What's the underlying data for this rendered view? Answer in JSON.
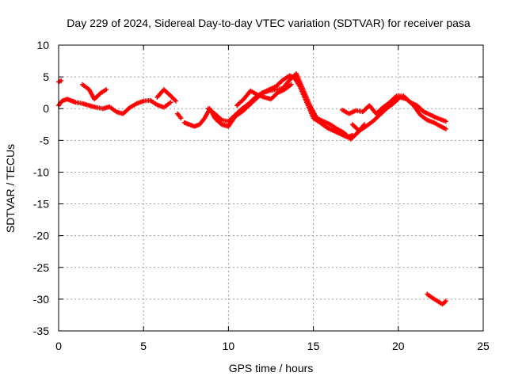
{
  "colors": {
    "series": "#ff0000",
    "grid": "#a0a0a0",
    "axis": "#000000"
  },
  "chart_data": {
    "type": "scatter",
    "title": "Day 229 of 2024, Sidereal Day-to-day VTEC variation (SDTVAR) for receiver pasa",
    "xlabel": "GPS time / hours",
    "ylabel": "SDTVAR / TECUs",
    "xlim": [
      0,
      25
    ],
    "ylim": [
      -35,
      10
    ],
    "xticks": [
      0,
      5,
      10,
      15,
      20,
      25
    ],
    "yticks": [
      10,
      5,
      0,
      -5,
      -10,
      -15,
      -20,
      -25,
      -30,
      -35
    ],
    "grid": true,
    "marker": "plus",
    "series": [
      {
        "name": "SDTVAR",
        "x": [
          0,
          0.2,
          0.5,
          0.8,
          1.0,
          1.4,
          1.8,
          2.2,
          2.6,
          3.0,
          3.4,
          3.8,
          4.2,
          4.6,
          5.0,
          5.4,
          5.8,
          6.2,
          6.6
        ],
        "y": [
          0.5,
          1.2,
          1.5,
          1.2,
          1.0,
          0.8,
          0.5,
          0.2,
          0.0,
          0.3,
          -0.5,
          -0.8,
          0.2,
          0.8,
          1.2,
          1.3,
          0.6,
          0.2,
          1.0
        ]
      },
      {
        "name": "SDTVAR",
        "x": [
          0.0,
          0.15
        ],
        "y": [
          4.2,
          4.4
        ]
      },
      {
        "name": "SDTVAR",
        "x": [
          1.4,
          1.8,
          2.1,
          2.5,
          2.8
        ],
        "y": [
          3.8,
          3.0,
          1.5,
          2.5,
          3.0
        ]
      },
      {
        "name": "SDTVAR",
        "x": [
          5.8,
          6.2,
          6.6,
          6.9
        ],
        "y": [
          1.8,
          3.0,
          2.0,
          1.2
        ]
      },
      {
        "name": "SDTVAR",
        "x": [
          7.0,
          7.2
        ],
        "y": [
          -0.8,
          -1.5
        ]
      },
      {
        "name": "SDTVAR",
        "x": [
          7.4,
          7.7,
          8.0,
          8.3,
          8.6,
          8.9,
          9.2,
          9.6,
          10.0,
          10.4,
          10.8,
          11.2,
          11.6,
          12.0,
          12.4,
          12.8,
          13.2,
          13.6,
          13.9,
          14.2,
          14.6,
          15.0,
          15.4,
          15.8,
          16.2,
          16.6,
          17.0,
          17.3
        ],
        "y": [
          -2.2,
          -2.5,
          -2.8,
          -2.5,
          -1.5,
          0.0,
          -1.5,
          -2.5,
          -2.8,
          -1.2,
          -0.5,
          0.5,
          1.5,
          2.5,
          3.0,
          3.5,
          4.5,
          5.2,
          4.8,
          3.5,
          1.0,
          -1.5,
          -2.2,
          -3.0,
          -3.5,
          -4.0,
          -4.5,
          -4.2
        ]
      },
      {
        "name": "SDTVAR",
        "x": [
          8.8,
          9.2,
          9.6,
          10.0,
          10.4,
          10.8,
          11.2,
          11.6,
          12.0,
          12.4,
          12.8,
          13.2,
          13.6,
          14.0,
          14.4,
          14.8,
          15.2,
          15.6,
          16.0,
          16.4,
          16.8,
          17.2,
          17.6,
          18.0
        ],
        "y": [
          0.0,
          -0.8,
          -1.8,
          -2.0,
          -1.0,
          0.0,
          0.8,
          1.8,
          2.5,
          2.8,
          3.0,
          3.2,
          4.5,
          5.5,
          3.0,
          0.5,
          -1.5,
          -2.0,
          -2.5,
          -3.2,
          -3.8,
          -4.8,
          -3.8,
          -2.5
        ]
      },
      {
        "name": "SDTVAR",
        "x": [
          10.5,
          10.9,
          11.3,
          11.7,
          12.1,
          12.5,
          12.9,
          13.3,
          13.7
        ],
        "y": [
          0.5,
          1.5,
          2.8,
          2.2,
          1.8,
          1.5,
          2.5,
          3.0,
          3.8
        ]
      },
      {
        "name": "SDTVAR",
        "x": [
          16.7,
          17.1,
          17.5,
          17.9,
          18.3,
          18.7,
          19.1,
          19.5,
          19.9,
          20.3,
          20.7,
          21.1,
          21.5,
          21.9,
          22.3,
          22.8
        ],
        "y": [
          -0.2,
          -0.8,
          -0.3,
          -0.5,
          0.5,
          -0.8,
          0.2,
          1.0,
          2.0,
          2.0,
          1.0,
          0.5,
          -0.5,
          -1.0,
          -1.5,
          -2.0
        ]
      },
      {
        "name": "SDTVAR",
        "x": [
          17.3,
          17.7,
          18.1,
          18.5,
          18.9,
          19.3,
          19.7,
          20.1,
          20.5,
          20.9,
          21.3,
          21.7,
          22.1,
          22.5,
          22.8
        ],
        "y": [
          -2.5,
          -3.5,
          -2.8,
          -2.0,
          -1.0,
          0.0,
          0.8,
          1.8,
          1.5,
          0.5,
          -1.0,
          -1.8,
          -2.2,
          -2.8,
          -3.2
        ]
      },
      {
        "name": "SDTVAR",
        "x": [
          21.7,
          22.0,
          22.3,
          22.6,
          22.8
        ],
        "y": [
          -29.2,
          -29.8,
          -30.3,
          -30.8,
          -30.3
        ]
      }
    ]
  }
}
